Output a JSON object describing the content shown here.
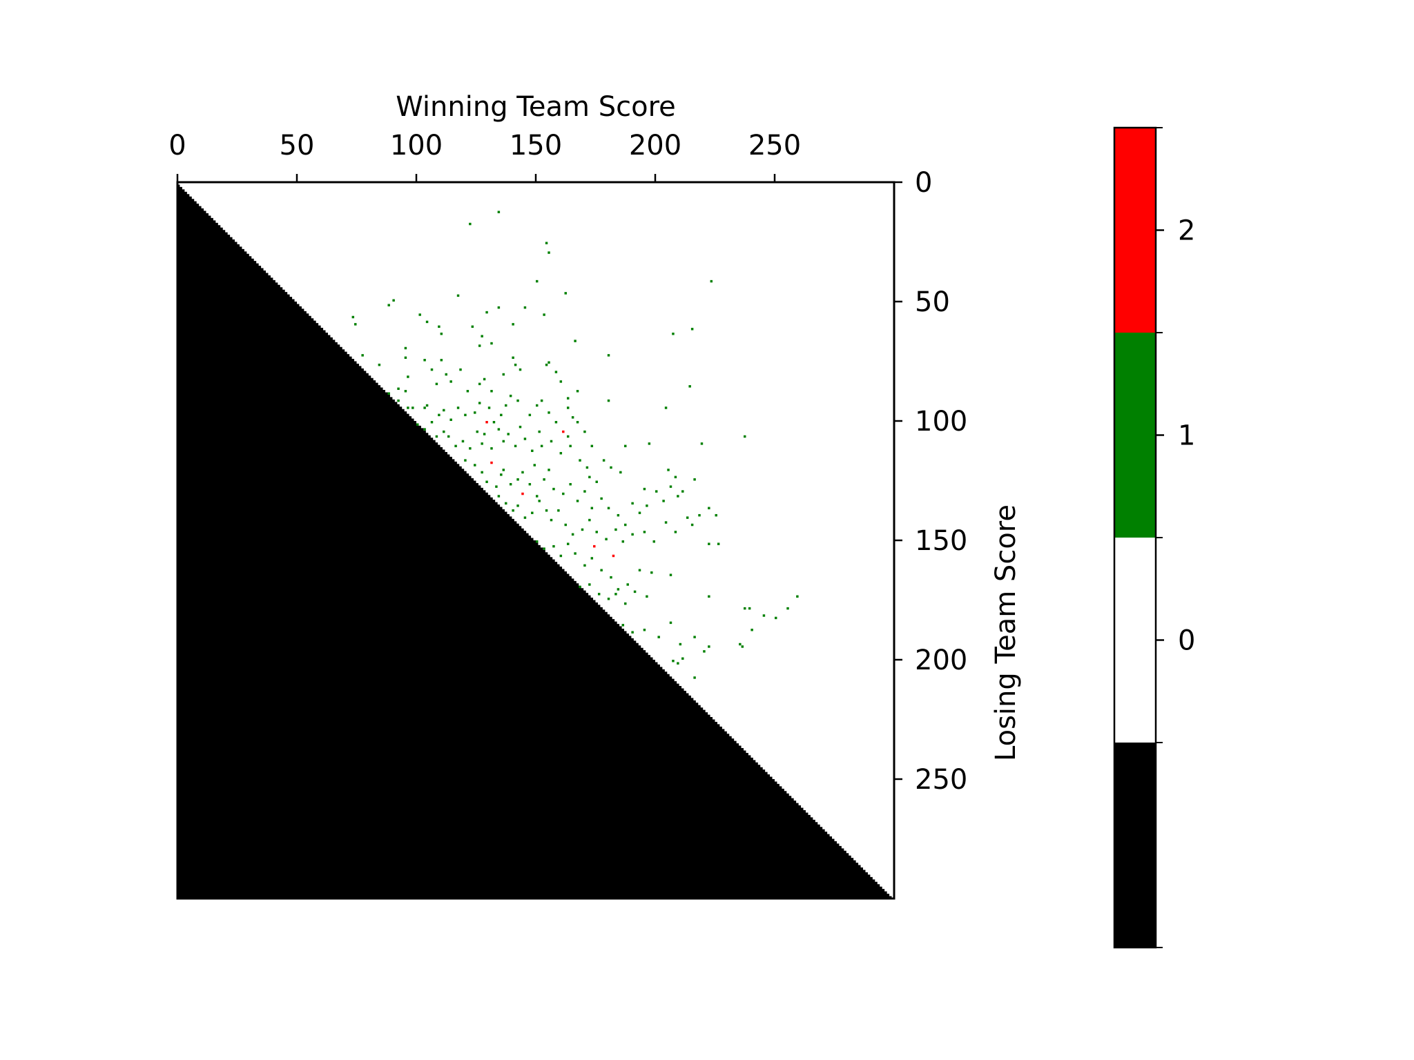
{
  "chart_data": {
    "type": "heatmap",
    "title": "",
    "xlabel": "Winning Team Score",
    "ylabel": "Losing Team Score",
    "x_axis_position": "top",
    "y_axis_position": "right",
    "xlim": [
      0,
      300
    ],
    "ylim": [
      300,
      0
    ],
    "xticks": [
      0,
      50,
      100,
      150,
      200,
      250
    ],
    "yticks": [
      0,
      50,
      100,
      150,
      200,
      250
    ],
    "grid": false,
    "fill_below_diagonal": {
      "value": -1,
      "color": "#000000",
      "rule": "losing score > winning score"
    },
    "colorbar": {
      "position": "right",
      "ticks": [
        0,
        1,
        2
      ],
      "levels": [
        {
          "value": -1,
          "color": "#000000"
        },
        {
          "value": 0,
          "color": "#ffffff"
        },
        {
          "value": 1,
          "color": "#008000"
        },
        {
          "value": 2,
          "color": "#ff0000"
        }
      ]
    },
    "points_value_2": [
      [
        129,
        100
      ],
      [
        131,
        117
      ],
      [
        144,
        130
      ],
      [
        161,
        104
      ],
      [
        174,
        152
      ],
      [
        182,
        156
      ]
    ],
    "points_value_1": [
      [
        122,
        17
      ],
      [
        134,
        12
      ],
      [
        154,
        25
      ],
      [
        155,
        29
      ],
      [
        150,
        41
      ],
      [
        162,
        46
      ],
      [
        223,
        41
      ],
      [
        117,
        47
      ],
      [
        129,
        54
      ],
      [
        134,
        52
      ],
      [
        145,
        52
      ],
      [
        153,
        55
      ],
      [
        140,
        59
      ],
      [
        166,
        66
      ],
      [
        180,
        72
      ],
      [
        207,
        63
      ],
      [
        215,
        61
      ],
      [
        73,
        56
      ],
      [
        74,
        59
      ],
      [
        88,
        51
      ],
      [
        90,
        49
      ],
      [
        101,
        55
      ],
      [
        104,
        58
      ],
      [
        109,
        60
      ],
      [
        110,
        63
      ],
      [
        123,
        60
      ],
      [
        126,
        68
      ],
      [
        127,
        64
      ],
      [
        131,
        67
      ],
      [
        77,
        72
      ],
      [
        84,
        76
      ],
      [
        95,
        69
      ],
      [
        95,
        73
      ],
      [
        96,
        81
      ],
      [
        103,
        74
      ],
      [
        106,
        78
      ],
      [
        110,
        74
      ],
      [
        112,
        80
      ],
      [
        108,
        84
      ],
      [
        114,
        83
      ],
      [
        118,
        78
      ],
      [
        121,
        87
      ],
      [
        126,
        84
      ],
      [
        128,
        82
      ],
      [
        131,
        87
      ],
      [
        136,
        80
      ],
      [
        140,
        73
      ],
      [
        141,
        76
      ],
      [
        143,
        78
      ],
      [
        154,
        76
      ],
      [
        155,
        75
      ],
      [
        158,
        79
      ],
      [
        160,
        83
      ],
      [
        163,
        90
      ],
      [
        167,
        87
      ],
      [
        180,
        91
      ],
      [
        214,
        85
      ],
      [
        88,
        88
      ],
      [
        92,
        91
      ],
      [
        92,
        86
      ],
      [
        95,
        87
      ],
      [
        96,
        94
      ],
      [
        98,
        94
      ],
      [
        103,
        94
      ],
      [
        104,
        93
      ],
      [
        109,
        97
      ],
      [
        111,
        95
      ],
      [
        114,
        99
      ],
      [
        117,
        94
      ],
      [
        120,
        97
      ],
      [
        124,
        96
      ],
      [
        126,
        92
      ],
      [
        130,
        94
      ],
      [
        132,
        100
      ],
      [
        135,
        97
      ],
      [
        137,
        93
      ],
      [
        139,
        89
      ],
      [
        142,
        91
      ],
      [
        147,
        97
      ],
      [
        150,
        93
      ],
      [
        152,
        91
      ],
      [
        155,
        96
      ],
      [
        158,
        100
      ],
      [
        163,
        94
      ],
      [
        165,
        98
      ],
      [
        167,
        100
      ],
      [
        170,
        104
      ],
      [
        173,
        110
      ],
      [
        178,
        116
      ],
      [
        187,
        110
      ],
      [
        197,
        109
      ],
      [
        204,
        94
      ],
      [
        219,
        109
      ],
      [
        237,
        106
      ],
      [
        100,
        101
      ],
      [
        103,
        103
      ],
      [
        106,
        100
      ],
      [
        108,
        106
      ],
      [
        111,
        104
      ],
      [
        113,
        106
      ],
      [
        116,
        110
      ],
      [
        119,
        108
      ],
      [
        122,
        111
      ],
      [
        125,
        104
      ],
      [
        127,
        109
      ],
      [
        128,
        105
      ],
      [
        131,
        111
      ],
      [
        134,
        103
      ],
      [
        136,
        108
      ],
      [
        138,
        105
      ],
      [
        141,
        110
      ],
      [
        143,
        102
      ],
      [
        145,
        107
      ],
      [
        148,
        112
      ],
      [
        151,
        104
      ],
      [
        152,
        110
      ],
      [
        156,
        108
      ],
      [
        160,
        113
      ],
      [
        163,
        106
      ],
      [
        168,
        116
      ],
      [
        171,
        119
      ],
      [
        172,
        123
      ],
      [
        175,
        125
      ],
      [
        181,
        119
      ],
      [
        185,
        121
      ],
      [
        195,
        128
      ],
      [
        205,
        120
      ],
      [
        208,
        123
      ],
      [
        216,
        124
      ],
      [
        120,
        116
      ],
      [
        124,
        118
      ],
      [
        127,
        121
      ],
      [
        129,
        125
      ],
      [
        133,
        127
      ],
      [
        135,
        122
      ],
      [
        136,
        120
      ],
      [
        139,
        126
      ],
      [
        142,
        124
      ],
      [
        144,
        121
      ],
      [
        147,
        126
      ],
      [
        150,
        131
      ],
      [
        153,
        124
      ],
      [
        155,
        120
      ],
      [
        157,
        128
      ],
      [
        161,
        130
      ],
      [
        164,
        126
      ],
      [
        167,
        133
      ],
      [
        170,
        129
      ],
      [
        173,
        136
      ],
      [
        177,
        132
      ],
      [
        180,
        136
      ],
      [
        184,
        139
      ],
      [
        187,
        143
      ],
      [
        190,
        134
      ],
      [
        193,
        138
      ],
      [
        196,
        135
      ],
      [
        200,
        129
      ],
      [
        203,
        133
      ],
      [
        206,
        127
      ],
      [
        209,
        131
      ],
      [
        211,
        129
      ],
      [
        215,
        143
      ],
      [
        222,
        136
      ],
      [
        225,
        139
      ],
      [
        134,
        131
      ],
      [
        137,
        134
      ],
      [
        140,
        137
      ],
      [
        142,
        135
      ],
      [
        145,
        140
      ],
      [
        148,
        138
      ],
      [
        151,
        133
      ],
      [
        154,
        137
      ],
      [
        156,
        141
      ],
      [
        159,
        137
      ],
      [
        162,
        143
      ],
      [
        165,
        147
      ],
      [
        169,
        145
      ],
      [
        172,
        141
      ],
      [
        175,
        146
      ],
      [
        179,
        149
      ],
      [
        183,
        145
      ],
      [
        186,
        150
      ],
      [
        190,
        147
      ],
      [
        195,
        146
      ],
      [
        199,
        150
      ],
      [
        204,
        142
      ],
      [
        208,
        146
      ],
      [
        213,
        140
      ],
      [
        218,
        139
      ],
      [
        226,
        151
      ],
      [
        150,
        150
      ],
      [
        153,
        153
      ],
      [
        157,
        152
      ],
      [
        160,
        156
      ],
      [
        163,
        151
      ],
      [
        166,
        155
      ],
      [
        170,
        160
      ],
      [
        173,
        157
      ],
      [
        177,
        162
      ],
      [
        181,
        165
      ],
      [
        184,
        170
      ],
      [
        188,
        168
      ],
      [
        193,
        162
      ],
      [
        198,
        163
      ],
      [
        206,
        164
      ],
      [
        222,
        151
      ],
      [
        168,
        169
      ],
      [
        172,
        168
      ],
      [
        176,
        172
      ],
      [
        180,
        174
      ],
      [
        183,
        172
      ],
      [
        187,
        176
      ],
      [
        191,
        171
      ],
      [
        196,
        173
      ],
      [
        222,
        173
      ],
      [
        237,
        178
      ],
      [
        239,
        178
      ],
      [
        250,
        182
      ],
      [
        259,
        173
      ],
      [
        186,
        185
      ],
      [
        190,
        188
      ],
      [
        195,
        187
      ],
      [
        201,
        190
      ],
      [
        206,
        184
      ],
      [
        210,
        193
      ],
      [
        216,
        190
      ],
      [
        220,
        196
      ],
      [
        222,
        194
      ],
      [
        235,
        193
      ],
      [
        236,
        194
      ],
      [
        211,
        199
      ],
      [
        216,
        207
      ],
      [
        207,
        200
      ],
      [
        209,
        201
      ],
      [
        240,
        187
      ],
      [
        245,
        181
      ],
      [
        255,
        178
      ],
      [
        164,
        110
      ],
      [
        149,
        118
      ]
    ]
  }
}
